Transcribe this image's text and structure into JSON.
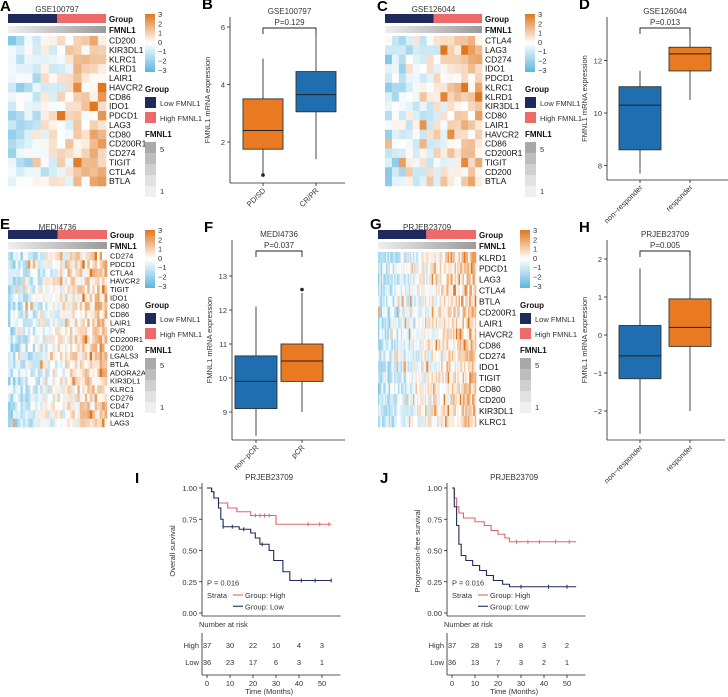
{
  "colors": {
    "low": "#1f2a5c",
    "high": "#ee6a6a",
    "box_blue": "#1f6fb0",
    "box_orange": "#ea7a22",
    "heat_neg": "#5cb6de",
    "heat_pos": "#e0761e",
    "km_high": "#e06666",
    "km_low": "#1f2a5c"
  },
  "chart_data": [
    {
      "panel": "A",
      "type": "heatmap",
      "title": "GSE100797",
      "n_low": 6,
      "n_high": 6,
      "annotations": [
        "Group",
        "FMNL1"
      ],
      "rows": [
        "CD200",
        "KIR3DL1",
        "KLRC1",
        "KLRD1",
        "LAIR1",
        "HAVCR2",
        "CD86",
        "IDO1",
        "PDCD1",
        "LAG3",
        "CD80",
        "CD200R1",
        "CD274",
        "TIGIT",
        "CTLA4",
        "BTLA"
      ],
      "scale_ticks": [
        "3",
        "2",
        "1",
        "0",
        "−1",
        "−2",
        "−3"
      ],
      "group_legend": {
        "title": "Group",
        "items": [
          "Low FMNL1",
          "High FMNL1"
        ]
      },
      "fmnl1_legend": {
        "title": "FMNL1",
        "ticks": [
          "5",
          "1"
        ]
      }
    },
    {
      "panel": "B",
      "type": "box",
      "title": "GSE100797",
      "p_value": "P=0.129",
      "ylabel": "FMNL1 mRNA expression",
      "yticks": [
        "2",
        "4",
        "6"
      ],
      "groups": [
        {
          "name": "PD/SD",
          "color": "orange",
          "min": 0.9,
          "q1": 1.75,
          "median": 2.4,
          "q3": 3.5,
          "max": 4.9,
          "outliers": [
            0.85
          ]
        },
        {
          "name": "CR/PR",
          "color": "blue",
          "min": 1.4,
          "q1": 3.05,
          "median": 3.65,
          "q3": 4.45,
          "max": 5.8,
          "outliers": []
        }
      ]
    },
    {
      "panel": "C",
      "type": "heatmap",
      "title": "GSE126044",
      "n_low": 7,
      "n_high": 7,
      "annotations": [
        "Group",
        "FMNL1"
      ],
      "rows": [
        "CTLA4",
        "LAG3",
        "CD274",
        "IDO1",
        "PDCD1",
        "KLRC1",
        "KLRD1",
        "KIR3DL1",
        "CD80",
        "LAIR1",
        "HAVCR2",
        "CD86",
        "CD200R1",
        "TIGIT",
        "CD200",
        "BTLA"
      ],
      "scale_ticks": [
        "3",
        "2",
        "1",
        "0",
        "−1",
        "−2",
        "−3"
      ],
      "group_legend": {
        "title": "Group",
        "items": [
          "Low FMNL1",
          "High FMNL1"
        ]
      },
      "fmnl1_legend": {
        "title": "FMNL1",
        "ticks": [
          "5",
          "1"
        ]
      }
    },
    {
      "panel": "D",
      "type": "box",
      "title": "GSE126044",
      "p_value": "P=0.013",
      "ylabel": "FMNL1 mRNA expression",
      "yticks": [
        "8",
        "10",
        "12"
      ],
      "groups": [
        {
          "name": "non−responder",
          "color": "blue",
          "min": 7.7,
          "q1": 8.6,
          "median": 10.3,
          "q3": 11.0,
          "max": 11.6,
          "outliers": []
        },
        {
          "name": "responder",
          "color": "orange",
          "min": 10.5,
          "q1": 11.6,
          "median": 12.25,
          "q3": 12.5,
          "max": 13.2,
          "outliers": []
        }
      ]
    },
    {
      "panel": "E",
      "type": "heatmap",
      "title": "MEDI4736",
      "n_low": 20,
      "n_high": 20,
      "annotations": [
        "Group",
        "FMNL1"
      ],
      "rows": [
        "CD274",
        "PDCD1",
        "CTLA4",
        "HAVCR2",
        "TIGIT",
        "IDO1",
        "CD80",
        "CD86",
        "LAIR1",
        "PVR",
        "CD200R1",
        "CD200",
        "LGALS3",
        "BTLA",
        "ADORA2A",
        "KIR3DL1",
        "KLRC1",
        "CD276",
        "CD47",
        "KLRD1",
        "LAG3"
      ],
      "scale_ticks": [
        "3",
        "2",
        "1",
        "0",
        "−1",
        "−2",
        "−3"
      ],
      "group_legend": {
        "title": "Group",
        "items": [
          "Low FMNL1",
          "High FMNL1"
        ]
      },
      "fmnl1_legend": {
        "title": "FMNL1",
        "ticks": [
          "5",
          "1"
        ]
      }
    },
    {
      "panel": "F",
      "type": "box",
      "title": "MEDI4736",
      "p_value": "P=0.037",
      "ylabel": "FMNL1 mRNA expression",
      "yticks": [
        "9",
        "10",
        "11",
        "12",
        "13"
      ],
      "groups": [
        {
          "name": "non−pCR",
          "color": "blue",
          "min": 8.3,
          "q1": 9.1,
          "median": 9.9,
          "q3": 10.65,
          "max": 12.1,
          "outliers": []
        },
        {
          "name": "pCR",
          "color": "orange",
          "min": 9.0,
          "q1": 9.9,
          "median": 10.5,
          "q3": 11.0,
          "max": 12.5,
          "outliers": [
            12.6
          ]
        }
      ]
    },
    {
      "panel": "G",
      "type": "heatmap",
      "title": "PRJEB23709",
      "n_low": 36,
      "n_high": 37,
      "annotations": [
        "Group",
        "FMNL1"
      ],
      "rows": [
        "KLRD1",
        "PDCD1",
        "LAG3",
        "CTLA4",
        "BTLA",
        "CD200R1",
        "LAIR1",
        "HAVCR2",
        "CD86",
        "CD274",
        "IDO1",
        "TIGIT",
        "CD80",
        "CD200",
        "KIR3DL1",
        "KLRC1"
      ],
      "scale_ticks": [
        "3",
        "2",
        "1",
        "0",
        "−1",
        "−2",
        "−3"
      ],
      "group_legend": {
        "title": "Group",
        "items": [
          "Low FMNL1",
          "High FMNL1"
        ]
      },
      "fmnl1_legend": {
        "title": "FMNL1",
        "ticks": [
          "5",
          "1"
        ]
      }
    },
    {
      "panel": "H",
      "type": "box",
      "title": "PRJEB23709",
      "p_value": "P=0.005",
      "ylabel": "FMNL1 mRNA expression",
      "yticks": [
        "−2",
        "−1",
        "0",
        "1",
        "2"
      ],
      "groups": [
        {
          "name": "non−responder",
          "color": "blue",
          "min": -2.6,
          "q1": -1.15,
          "median": -0.55,
          "q3": 0.25,
          "max": 1.75,
          "outliers": []
        },
        {
          "name": "responder",
          "color": "orange",
          "min": -2.0,
          "q1": -0.3,
          "median": 0.2,
          "q3": 0.95,
          "max": 2.2,
          "outliers": []
        }
      ]
    },
    {
      "panel": "I",
      "type": "line",
      "title": "PRJEB23709",
      "ylabel": "Overall survival",
      "xlabel": "Time (Months)",
      "p_value": "P = 0.016",
      "legend_title": "Strata",
      "legend": [
        "Group: High",
        "Group: Low"
      ],
      "yticks": [
        "0.00",
        "0.25",
        "0.50",
        "0.75",
        "1.00"
      ],
      "xticks": [
        "0",
        "10",
        "20",
        "30",
        "40",
        "50"
      ],
      "risk_title": "Number at risk",
      "risk_labels": [
        "High",
        "Low"
      ],
      "risk": {
        "High": [
          "37",
          "30",
          "22",
          "10",
          "4",
          "3"
        ],
        "Low": [
          "36",
          "23",
          "17",
          "6",
          "3",
          "1"
        ]
      },
      "series": [
        {
          "name": "High",
          "steps": [
            [
              0,
              1
            ],
            [
              2,
              0.97
            ],
            [
              3,
              0.92
            ],
            [
              5,
              0.88
            ],
            [
              9,
              0.84
            ],
            [
              13,
              0.81
            ],
            [
              19,
              0.78
            ],
            [
              30,
              0.71
            ],
            [
              54,
              0.71
            ]
          ],
          "censors": [
            21,
            23,
            25,
            27,
            44,
            49,
            53
          ]
        },
        {
          "name": "Low",
          "steps": [
            [
              0,
              1
            ],
            [
              2,
              0.97
            ],
            [
              3,
              0.92
            ],
            [
              5,
              0.84
            ],
            [
              6,
              0.75
            ],
            [
              7,
              0.69
            ],
            [
              14,
              0.67
            ],
            [
              19,
              0.64
            ],
            [
              21,
              0.6
            ],
            [
              23,
              0.55
            ],
            [
              27,
              0.5
            ],
            [
              29,
              0.42
            ],
            [
              33,
              0.33
            ],
            [
              36,
              0.26
            ],
            [
              54,
              0.26
            ]
          ],
          "censors": [
            7,
            11,
            16,
            24,
            41,
            47,
            54
          ]
        }
      ]
    },
    {
      "panel": "J",
      "type": "line",
      "title": "PRJEB23709",
      "ylabel": "Progression-free survival",
      "xlabel": "Time (Months)",
      "p_value": "P = 0.016",
      "legend_title": "Strata",
      "legend": [
        "Group: High",
        "Group: Low"
      ],
      "yticks": [
        "0.00",
        "0.25",
        "0.50",
        "0.75",
        "1.00"
      ],
      "xticks": [
        "0",
        "10",
        "20",
        "30",
        "40",
        "50"
      ],
      "risk_title": "Number at risk",
      "risk_labels": [
        "High",
        "Low"
      ],
      "risk": {
        "High": [
          "37",
          "28",
          "19",
          "8",
          "3",
          "2"
        ],
        "Low": [
          "36",
          "13",
          "7",
          "3",
          "2",
          "1"
        ]
      },
      "series": [
        {
          "name": "High",
          "steps": [
            [
              0,
              1
            ],
            [
              1,
              0.92
            ],
            [
              2,
              0.85
            ],
            [
              3,
              0.8
            ],
            [
              5,
              0.76
            ],
            [
              10,
              0.73
            ],
            [
              14,
              0.7
            ],
            [
              17,
              0.66
            ],
            [
              20,
              0.63
            ],
            [
              23,
              0.6
            ],
            [
              25,
              0.57
            ],
            [
              54,
              0.57
            ]
          ],
          "censors": [
            28,
            33,
            38,
            45,
            51
          ]
        },
        {
          "name": "Low",
          "steps": [
            [
              0,
              1
            ],
            [
              1,
              0.85
            ],
            [
              2,
              0.7
            ],
            [
              3,
              0.55
            ],
            [
              4,
              0.46
            ],
            [
              6,
              0.42
            ],
            [
              9,
              0.38
            ],
            [
              12,
              0.34
            ],
            [
              15,
              0.3
            ],
            [
              18,
              0.26
            ],
            [
              22,
              0.23
            ],
            [
              25,
              0.21
            ],
            [
              54,
              0.21
            ]
          ],
          "censors": [
            30,
            42,
            50
          ]
        }
      ]
    }
  ]
}
